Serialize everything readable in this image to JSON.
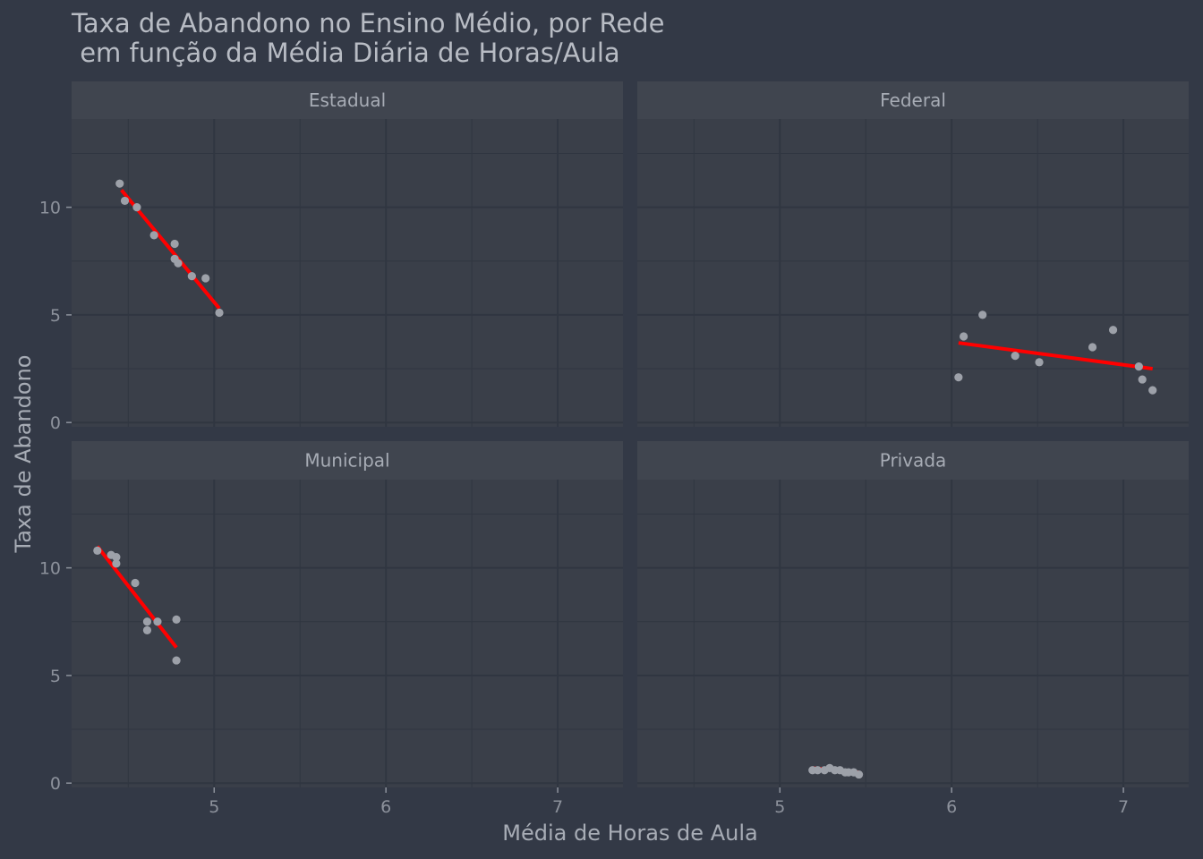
{
  "chart_data": {
    "type": "scatter",
    "title": "Taxa de Abandono no Ensino Médio, por Rede",
    "subtitle": " em função da Média Diária de Horas/Aula",
    "xlabel": "Média de Horas de Aula",
    "ylabel": "Taxa de Abandono",
    "xlim": [
      4.17,
      7.38
    ],
    "ylim": [
      -0.2,
      14.1
    ],
    "x_ticks": [
      5,
      6,
      7
    ],
    "y_ticks": [
      0,
      5,
      10
    ],
    "x_tick_labels": [
      "5",
      "6",
      "7"
    ],
    "y_tick_labels": [
      "0",
      "5",
      "10"
    ],
    "grid": true,
    "trend_line": "linear fit (red)",
    "colors": {
      "background": "#333946",
      "panel": "#3a3f49",
      "strip": "#40454f",
      "grid": "#303641",
      "point": "#9da1a9",
      "trend": "#ff0000"
    },
    "panels": [
      {
        "name": "Estadual",
        "points": [
          {
            "x": 4.45,
            "y": 11.1
          },
          {
            "x": 4.48,
            "y": 10.3
          },
          {
            "x": 4.55,
            "y": 10.0
          },
          {
            "x": 4.65,
            "y": 8.7
          },
          {
            "x": 4.77,
            "y": 8.3
          },
          {
            "x": 4.77,
            "y": 7.6
          },
          {
            "x": 4.79,
            "y": 7.4
          },
          {
            "x": 4.87,
            "y": 6.8
          },
          {
            "x": 4.95,
            "y": 6.7
          },
          {
            "x": 5.03,
            "y": 5.1
          }
        ],
        "trend": {
          "x": [
            4.46,
            5.03
          ],
          "y": [
            10.8,
            5.3
          ]
        }
      },
      {
        "name": "Federal",
        "points": [
          {
            "x": 6.04,
            "y": 2.1
          },
          {
            "x": 6.07,
            "y": 4.0
          },
          {
            "x": 6.18,
            "y": 5.0
          },
          {
            "x": 6.37,
            "y": 3.1
          },
          {
            "x": 6.51,
            "y": 2.8
          },
          {
            "x": 6.82,
            "y": 3.5
          },
          {
            "x": 6.94,
            "y": 4.3
          },
          {
            "x": 7.09,
            "y": 2.6
          },
          {
            "x": 7.11,
            "y": 2.0
          },
          {
            "x": 7.17,
            "y": 1.5
          }
        ],
        "trend": {
          "x": [
            6.04,
            7.17
          ],
          "y": [
            3.7,
            2.5
          ]
        }
      },
      {
        "name": "Municipal",
        "points": [
          {
            "x": 4.32,
            "y": 10.8
          },
          {
            "x": 4.4,
            "y": 10.6
          },
          {
            "x": 4.43,
            "y": 10.5
          },
          {
            "x": 4.43,
            "y": 10.2
          },
          {
            "x": 4.54,
            "y": 9.3
          },
          {
            "x": 4.61,
            "y": 7.5
          },
          {
            "x": 4.61,
            "y": 7.1
          },
          {
            "x": 4.67,
            "y": 7.5
          },
          {
            "x": 4.78,
            "y": 7.6
          },
          {
            "x": 4.78,
            "y": 5.7
          }
        ],
        "trend": {
          "x": [
            4.32,
            4.78
          ],
          "y": [
            11.0,
            6.3
          ]
        }
      },
      {
        "name": "Privada",
        "points": [
          {
            "x": 5.19,
            "y": 0.6
          },
          {
            "x": 5.22,
            "y": 0.6
          },
          {
            "x": 5.26,
            "y": 0.6
          },
          {
            "x": 5.29,
            "y": 0.7
          },
          {
            "x": 5.32,
            "y": 0.6
          },
          {
            "x": 5.35,
            "y": 0.6
          },
          {
            "x": 5.38,
            "y": 0.5
          },
          {
            "x": 5.4,
            "y": 0.5
          },
          {
            "x": 5.43,
            "y": 0.5
          },
          {
            "x": 5.46,
            "y": 0.4
          }
        ],
        "trend": {
          "x": [
            5.19,
            5.46
          ],
          "y": [
            0.7,
            0.5
          ]
        }
      }
    ]
  }
}
